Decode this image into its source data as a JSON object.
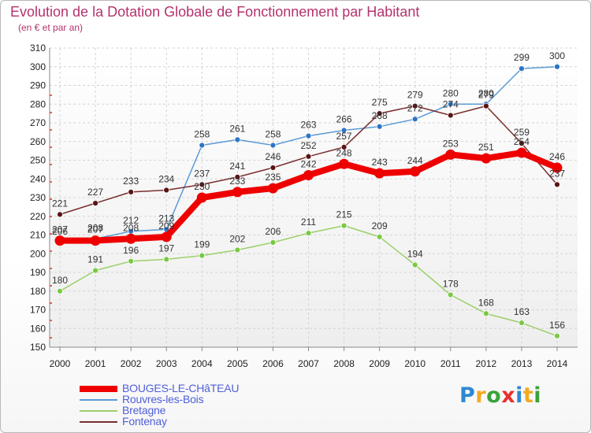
{
  "header": {
    "title": "Evolution de la Dotation Globale de Fonctionnement par Habitant",
    "subtitle": "(en € et par an)"
  },
  "logo": {
    "text": "Proxiti",
    "colors": [
      "#2e88d0",
      "#f2a922",
      "#3aa33a",
      "#e8312e",
      "#2e88d0",
      "#f2a922",
      "#3aa33a"
    ]
  },
  "chart_data": {
    "type": "line",
    "title": "Evolution de la Dotation Globale de Fonctionnement par Habitant",
    "subtitle": "(en € et par an)",
    "x": [
      2000,
      2001,
      2002,
      2003,
      2004,
      2005,
      2006,
      2007,
      2008,
      2009,
      2010,
      2011,
      2012,
      2013,
      2014
    ],
    "ylim": [
      150,
      310
    ],
    "yticks": [
      150,
      160,
      170,
      180,
      190,
      200,
      210,
      220,
      230,
      240,
      250,
      260,
      270,
      280,
      290,
      300,
      310
    ],
    "grid": true,
    "legend_position": "bottom-left",
    "series": [
      {
        "name": "Rouvres-les-Bois",
        "color": "#5b9bd5",
        "marker": "#2e75c5",
        "values": [
          206,
          208,
          212,
          213,
          258,
          261,
          258,
          263,
          266,
          268,
          272,
          280,
          280,
          299,
          300
        ]
      },
      {
        "name": "Bretagne",
        "color": "#9bd06a",
        "marker": "#7ac943",
        "values": [
          180,
          191,
          196,
          197,
          199,
          202,
          206,
          211,
          215,
          209,
          194,
          178,
          168,
          163,
          156
        ]
      },
      {
        "name": "Fontenay",
        "color": "#7a2e2e",
        "marker": "#5a1414",
        "values": [
          221,
          227,
          233,
          234,
          237,
          241,
          246,
          252,
          257,
          275,
          279,
          274,
          279,
          259,
          237
        ]
      },
      {
        "name": "BOUGES-LE-CHâTEAU",
        "color": "#ee0000",
        "marker": "#ee0000",
        "bold": true,
        "values": [
          207,
          207,
          208,
          209,
          230,
          233,
          235,
          242,
          248,
          243,
          244,
          253,
          251,
          254,
          246
        ]
      }
    ],
    "legend_order": [
      "BOUGES-LE-CHâTEAU",
      "Rouvres-les-Bois",
      "Bretagne",
      "Fontenay"
    ]
  }
}
